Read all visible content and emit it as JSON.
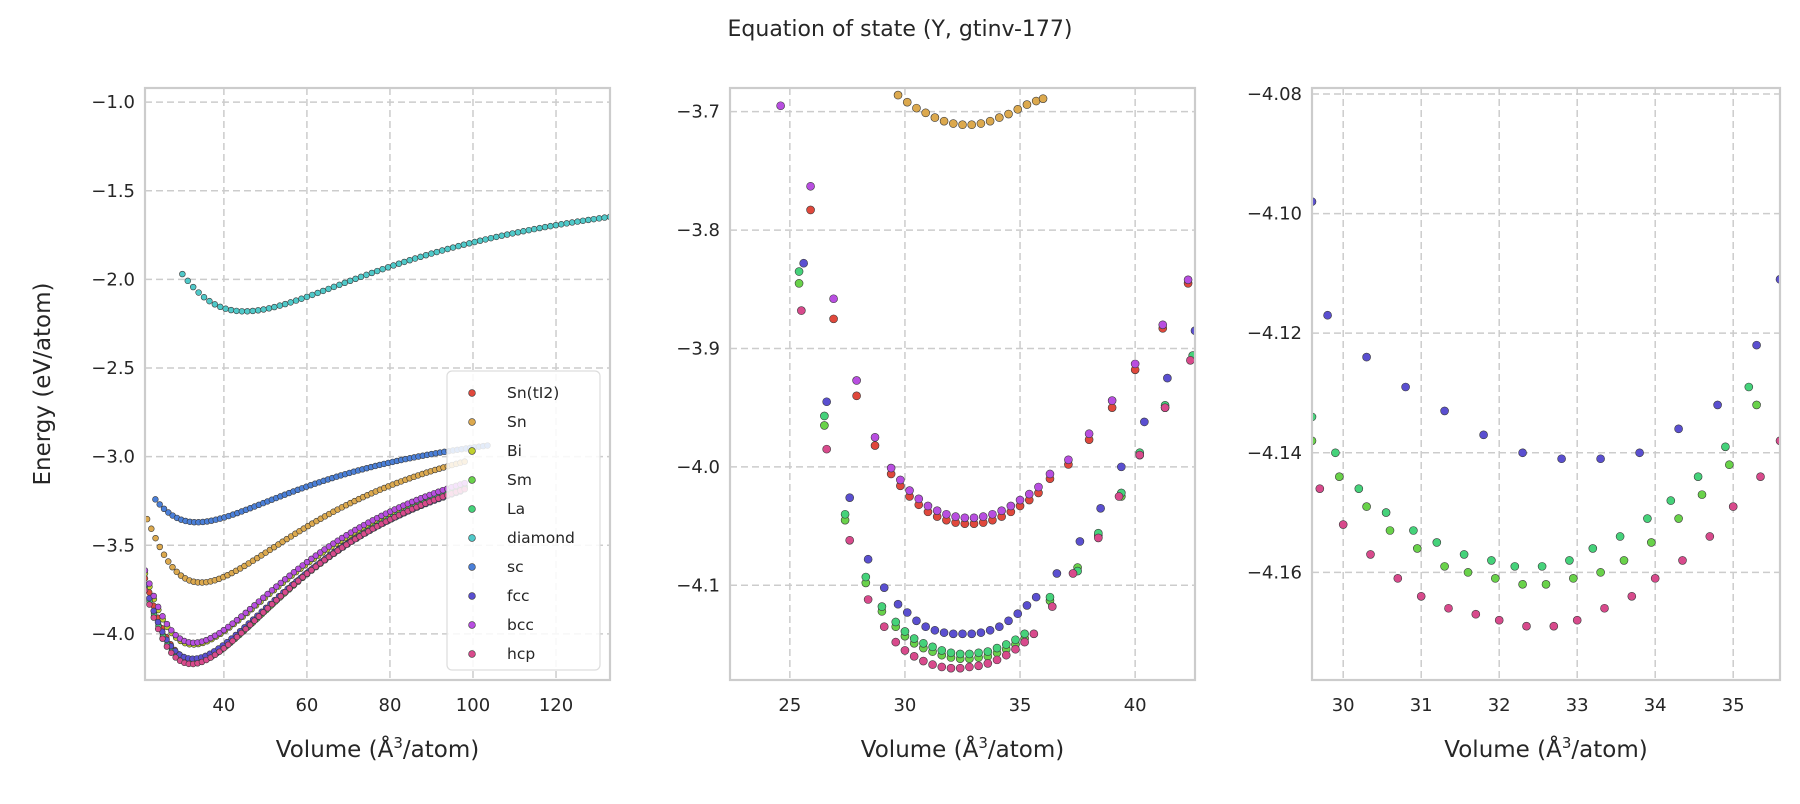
{
  "figure": {
    "title": "Equation of state (Y, gtinv-177)"
  },
  "chart_data": [
    {
      "type": "scatter",
      "xlabel": "Volume (Å³/atom)",
      "ylabel": "Energy (eV/atom)",
      "xlim": [
        21,
        133
      ],
      "ylim": [
        -4.26,
        -0.92
      ],
      "xticks": [
        40,
        60,
        80,
        100,
        120
      ],
      "yticks": [
        -1.0,
        -1.5,
        -2.0,
        -2.5,
        -3.0,
        -3.5,
        -4.0
      ],
      "grid": true,
      "legend": {
        "placement": "lower-right"
      },
      "series": [
        {
          "name": "Sn(tI2)",
          "color": "#e0483c",
          "v0": 33.0,
          "e0": -4.15,
          "k": 0.00205,
          "x": [
            21,
            98
          ],
          "n": 76
        },
        {
          "name": "Sn",
          "color": "#dca94e",
          "v0": 34.5,
          "e0": -3.71,
          "k": 0.00135,
          "x": [
            21.5,
            98
          ],
          "n": 76
        },
        {
          "name": "Bi",
          "color": "#c0d02e",
          "v0": 32.6,
          "e0": -4.06,
          "k": 0.0019,
          "x": [
            21,
            97
          ],
          "n": 72
        },
        {
          "name": "Sm",
          "color": "#69d24a",
          "v0": 32.6,
          "e0": -4.16,
          "k": 0.00207,
          "x": [
            21,
            98
          ],
          "n": 72
        },
        {
          "name": "La",
          "color": "#45d27a",
          "v0": 32.4,
          "e0": -4.16,
          "k": 0.0021,
          "x": [
            21,
            98
          ],
          "n": 72
        },
        {
          "name": "diamond",
          "color": "#4fc9c9",
          "v0": 45.0,
          "e0": -2.18,
          "k": 0.0006,
          "x": [
            30,
            133
          ],
          "n": 80
        },
        {
          "name": "sc",
          "color": "#4a7fd8",
          "v0": 33.5,
          "e0": -3.37,
          "k": 0.00085,
          "x": [
            23.5,
            103.5
          ],
          "n": 78
        },
        {
          "name": "fcc",
          "color": "#5a4fd0",
          "v0": 32.5,
          "e0": -4.14,
          "k": 0.00202,
          "x": [
            21,
            97
          ],
          "n": 74
        },
        {
          "name": "bcc",
          "color": "#b84ee0",
          "v0": 32.7,
          "e0": -4.05,
          "k": 0.0019,
          "x": [
            21,
            98
          ],
          "n": 74
        },
        {
          "name": "hcp",
          "color": "#d84a8c",
          "v0": 32.2,
          "e0": -4.17,
          "k": 0.00212,
          "x": [
            21,
            98
          ],
          "n": 74
        }
      ]
    },
    {
      "type": "scatter",
      "xlabel": "Volume (Å³/atom)",
      "ylabel": "",
      "xlim": [
        22.4,
        42.6
      ],
      "ylim": [
        -4.18,
        -3.68
      ],
      "xticks": [
        25,
        30,
        35,
        40
      ],
      "yticks": [
        -3.7,
        -3.8,
        -3.9,
        -4.0,
        -4.1
      ],
      "grid": true,
      "series": [
        {
          "name": "Sn",
          "x": [
            29.7,
            30.1,
            30.5,
            30.9,
            31.3,
            31.7,
            32.1,
            32.5,
            32.9,
            33.3,
            33.7,
            34.1,
            34.5,
            34.9,
            35.3,
            35.7,
            36.0
          ],
          "y": [
            -3.686,
            -3.692,
            -3.697,
            -3.701,
            -3.705,
            -3.708,
            -3.71,
            -3.711,
            -3.711,
            -3.71,
            -3.708,
            -3.705,
            -3.702,
            -3.698,
            -3.694,
            -3.691,
            -3.689
          ]
        },
        {
          "name": "Sn(tI2)",
          "x": [
            25.9,
            26.9,
            27.9,
            28.7,
            29.4,
            29.8,
            30.2,
            30.6,
            31.0,
            31.4,
            31.8,
            32.2,
            32.6,
            33.0,
            33.4,
            33.8,
            34.2,
            34.6,
            35.0,
            35.4,
            35.8,
            36.3,
            37.1,
            38.0,
            39.0,
            40.0,
            41.2,
            42.3
          ],
          "y": [
            -3.783,
            -3.875,
            -3.94,
            -3.982,
            -4.006,
            -4.016,
            -4.025,
            -4.032,
            -4.038,
            -4.042,
            -4.045,
            -4.047,
            -4.048,
            -4.048,
            -4.047,
            -4.045,
            -4.042,
            -4.038,
            -4.033,
            -4.028,
            -4.022,
            -4.01,
            -3.998,
            -3.977,
            -3.95,
            -3.918,
            -3.883,
            -3.845
          ]
        },
        {
          "name": "bcc",
          "x": [
            24.6,
            25.9,
            26.9,
            27.9,
            28.7,
            29.4,
            29.8,
            30.2,
            30.6,
            31.0,
            31.4,
            31.8,
            32.2,
            32.6,
            33.0,
            33.4,
            33.8,
            34.2,
            34.6,
            35.0,
            35.4,
            35.8,
            36.3,
            37.1,
            38.0,
            39.0,
            40.0,
            41.2,
            42.3
          ],
          "y": [
            -3.695,
            -3.763,
            -3.858,
            -3.927,
            -3.975,
            -4.001,
            -4.011,
            -4.02,
            -4.027,
            -4.033,
            -4.037,
            -4.04,
            -4.042,
            -4.043,
            -4.043,
            -4.042,
            -4.04,
            -4.037,
            -4.033,
            -4.028,
            -4.023,
            -4.017,
            -4.006,
            -3.994,
            -3.972,
            -3.944,
            -3.913,
            -3.88,
            -3.842
          ]
        },
        {
          "name": "Sm",
          "x": [
            25.4,
            26.5,
            27.4,
            28.3,
            29.0,
            29.6,
            30.0,
            30.4,
            30.8,
            31.2,
            31.6,
            32.0,
            32.4,
            32.8,
            33.2,
            33.6,
            34.0,
            34.4,
            34.8,
            35.2,
            36.3,
            37.5,
            38.4,
            39.4,
            40.2,
            41.3,
            42.5
          ],
          "y": [
            -3.845,
            -3.965,
            -4.045,
            -4.098,
            -4.122,
            -4.135,
            -4.143,
            -4.149,
            -4.153,
            -4.156,
            -4.159,
            -4.161,
            -4.162,
            -4.162,
            -4.161,
            -4.16,
            -4.157,
            -4.154,
            -4.15,
            -4.145,
            -4.113,
            -4.085,
            -4.058,
            -4.025,
            -3.99,
            -3.95,
            -3.908
          ]
        },
        {
          "name": "La",
          "x": [
            25.4,
            26.5,
            27.4,
            28.3,
            29.0,
            29.6,
            30.0,
            30.4,
            30.8,
            31.2,
            31.6,
            32.0,
            32.4,
            32.8,
            33.2,
            33.6,
            34.0,
            34.4,
            34.8,
            35.2,
            36.3,
            37.5,
            38.4,
            39.4,
            40.2,
            41.3,
            42.5
          ],
          "y": [
            -3.835,
            -3.957,
            -4.04,
            -4.093,
            -4.118,
            -4.131,
            -4.139,
            -4.145,
            -4.149,
            -4.152,
            -4.155,
            -4.157,
            -4.158,
            -4.158,
            -4.157,
            -4.156,
            -4.153,
            -4.15,
            -4.146,
            -4.141,
            -4.11,
            -4.088,
            -4.056,
            -4.022,
            -3.988,
            -3.948,
            -3.906
          ]
        },
        {
          "name": "fcc",
          "x": [
            25.6,
            26.6,
            27.6,
            28.4,
            29.1,
            29.7,
            30.1,
            30.5,
            30.9,
            31.3,
            31.7,
            32.1,
            32.5,
            32.9,
            33.3,
            33.7,
            34.1,
            34.5,
            34.9,
            35.3,
            35.7,
            36.6,
            37.6,
            38.5,
            39.4,
            40.4,
            41.4,
            42.6
          ],
          "y": [
            -3.828,
            -3.945,
            -4.026,
            -4.078,
            -4.102,
            -4.116,
            -4.123,
            -4.13,
            -4.135,
            -4.138,
            -4.14,
            -4.141,
            -4.141,
            -4.141,
            -4.14,
            -4.138,
            -4.135,
            -4.13,
            -4.124,
            -4.117,
            -4.11,
            -4.09,
            -4.063,
            -4.035,
            -4.0,
            -3.962,
            -3.925,
            -3.885
          ]
        },
        {
          "name": "hcp",
          "x": [
            25.5,
            26.6,
            27.6,
            28.4,
            29.1,
            29.6,
            30.0,
            30.4,
            30.8,
            31.2,
            31.6,
            32.0,
            32.4,
            32.8,
            33.2,
            33.6,
            34.0,
            34.4,
            34.8,
            35.2,
            35.6,
            36.4,
            37.3,
            38.4,
            39.3,
            40.2,
            41.3,
            42.4
          ],
          "y": [
            -3.868,
            -3.985,
            -4.062,
            -4.112,
            -4.135,
            -4.148,
            -4.155,
            -4.16,
            -4.164,
            -4.167,
            -4.169,
            -4.17,
            -4.17,
            -4.169,
            -4.168,
            -4.166,
            -4.163,
            -4.159,
            -4.154,
            -4.148,
            -4.141,
            -4.118,
            -4.09,
            -4.06,
            -4.025,
            -3.99,
            -3.95,
            -3.91
          ]
        }
      ]
    },
    {
      "type": "scatter",
      "xlabel": "Volume (Å³/atom)",
      "ylabel": "",
      "xlim": [
        29.6,
        35.6
      ],
      "ylim": [
        -4.178,
        -4.079
      ],
      "xticks": [
        30,
        31,
        32,
        33,
        34,
        35
      ],
      "yticks": [
        -4.08,
        -4.1,
        -4.12,
        -4.14,
        -4.16
      ],
      "grid": true,
      "series": [
        {
          "name": "fcc",
          "x": [
            29.6,
            29.8,
            30.3,
            30.8,
            31.3,
            31.8,
            32.3,
            32.8,
            33.3,
            33.8,
            34.3,
            34.8,
            35.3,
            35.6
          ],
          "y": [
            -4.098,
            -4.117,
            -4.124,
            -4.129,
            -4.133,
            -4.137,
            -4.14,
            -4.141,
            -4.141,
            -4.14,
            -4.136,
            -4.132,
            -4.122,
            -4.111
          ]
        },
        {
          "name": "La",
          "x": [
            29.6,
            29.9,
            30.2,
            30.55,
            30.9,
            31.2,
            31.55,
            31.9,
            32.2,
            32.55,
            32.9,
            33.2,
            33.55,
            33.9,
            34.2,
            34.55,
            34.9,
            35.2
          ],
          "y": [
            -4.134,
            -4.14,
            -4.146,
            -4.15,
            -4.153,
            -4.155,
            -4.157,
            -4.158,
            -4.159,
            -4.159,
            -4.158,
            -4.156,
            -4.154,
            -4.151,
            -4.148,
            -4.144,
            -4.139,
            -4.129
          ]
        },
        {
          "name": "Sm",
          "x": [
            29.6,
            29.95,
            30.3,
            30.6,
            30.95,
            31.3,
            31.6,
            31.95,
            32.3,
            32.6,
            32.95,
            33.3,
            33.6,
            33.95,
            34.3,
            34.6,
            34.95,
            35.3
          ],
          "y": [
            -4.138,
            -4.144,
            -4.149,
            -4.153,
            -4.156,
            -4.159,
            -4.16,
            -4.161,
            -4.162,
            -4.162,
            -4.161,
            -4.16,
            -4.158,
            -4.155,
            -4.151,
            -4.147,
            -4.142,
            -4.132
          ]
        },
        {
          "name": "hcp",
          "x": [
            29.7,
            30.0,
            30.35,
            30.7,
            31.0,
            31.35,
            31.7,
            32.0,
            32.35,
            32.7,
            33.0,
            33.35,
            33.7,
            34.0,
            34.35,
            34.7,
            35.0,
            35.35,
            35.6
          ],
          "y": [
            -4.146,
            -4.152,
            -4.157,
            -4.161,
            -4.164,
            -4.166,
            -4.167,
            -4.168,
            -4.169,
            -4.169,
            -4.168,
            -4.166,
            -4.164,
            -4.161,
            -4.158,
            -4.154,
            -4.149,
            -4.144,
            -4.138
          ]
        }
      ]
    }
  ]
}
